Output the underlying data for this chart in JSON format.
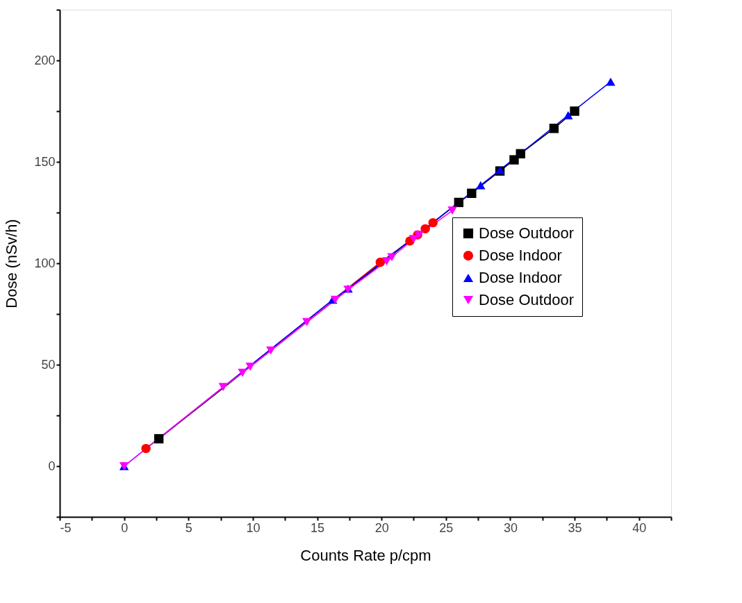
{
  "chart_data": {
    "type": "line",
    "xlabel": "Counts Rate p/cpm",
    "ylabel": "Dose (nSv/h)",
    "xlim": [
      -5,
      42.5
    ],
    "ylim": [
      -25,
      225
    ],
    "xticks": [
      -5,
      {
        "value": -2.5,
        "label": null
      },
      0,
      {
        "value": 2.5,
        "label": null
      },
      5,
      {
        "value": 7.5,
        "label": null
      },
      10,
      {
        "value": 12.5,
        "label": null
      },
      15,
      {
        "value": 17.5,
        "label": null
      },
      20,
      {
        "value": 22.5,
        "label": null
      },
      25,
      {
        "value": 27.5,
        "label": null
      },
      30,
      {
        "value": 32.5,
        "label": null
      },
      35,
      {
        "value": 37.5,
        "label": null
      },
      40,
      {
        "value": 42.5,
        "label": null
      }
    ],
    "yticks": [
      {
        "value": -25,
        "label": null
      },
      0,
      {
        "value": 25,
        "label": null
      },
      50,
      {
        "value": 75,
        "label": null
      },
      100,
      {
        "value": 125,
        "label": null
      },
      150,
      {
        "value": 175,
        "label": null
      },
      200,
      {
        "value": 225,
        "label": null
      }
    ],
    "grid": false,
    "legend": "right",
    "line_style": "solid",
    "series": [
      {
        "name": "Dose Outdoor",
        "color": "#000000",
        "marker": "square",
        "x": [
          2.7,
          26.0,
          27.0,
          29.2,
          30.3,
          30.8,
          33.4,
          35.0
        ],
        "values": [
          13.5,
          130,
          134.5,
          145.5,
          151,
          154,
          166.5,
          175
        ]
      },
      {
        "name": "Dose Indoor",
        "color": "#ff0000",
        "marker": "circle",
        "x": [
          1.7,
          19.9,
          22.2,
          22.8,
          23.4,
          24.0
        ],
        "values": [
          8.7,
          100.5,
          111,
          114,
          117,
          120
        ]
      },
      {
        "name": "Dose Indoor",
        "color": "#0000ff",
        "marker": "triangle",
        "x": [
          0,
          16.2,
          17.4,
          27.7,
          29.2,
          34.5,
          37.8
        ],
        "values": [
          0,
          82,
          87.5,
          138.5,
          146,
          173,
          189.5
        ]
      },
      {
        "name": "Dose Outdoor",
        "color": "#ff00ff",
        "marker": "triangle-down",
        "x": [
          0,
          7.7,
          9.2,
          9.8,
          11.4,
          14.2,
          16.4,
          17.4,
          20.4,
          20.8,
          22.5,
          22.9,
          25.5
        ],
        "values": [
          0,
          39,
          46,
          49,
          57,
          71,
          82,
          87,
          101,
          103,
          112,
          114,
          126
        ]
      }
    ]
  }
}
